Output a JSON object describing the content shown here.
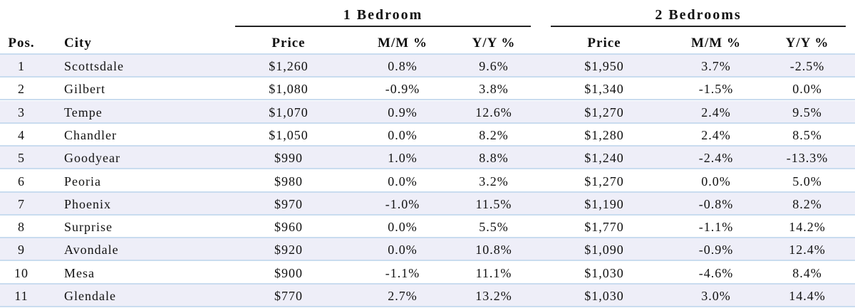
{
  "table": {
    "groups": [
      "1 Bedroom",
      "2 Bedrooms"
    ],
    "columns": [
      "Pos.",
      "City",
      "Price",
      "M/M %",
      "Y/Y %",
      "Price",
      "M/M %",
      "Y/Y %"
    ],
    "rows": [
      [
        "1",
        "Scottsdale",
        "$1,260",
        "0.8%",
        "9.6%",
        "$1,950",
        "3.7%",
        "-2.5%"
      ],
      [
        "2",
        "Gilbert",
        "$1,080",
        "-0.9%",
        "3.8%",
        "$1,340",
        "-1.5%",
        "0.0%"
      ],
      [
        "3",
        "Tempe",
        "$1,070",
        "0.9%",
        "12.6%",
        "$1,270",
        "2.4%",
        "9.5%"
      ],
      [
        "4",
        "Chandler",
        "$1,050",
        "0.0%",
        "8.2%",
        "$1,280",
        "2.4%",
        "8.5%"
      ],
      [
        "5",
        "Goodyear",
        "$990",
        "1.0%",
        "8.8%",
        "$1,240",
        "-2.4%",
        "-13.3%"
      ],
      [
        "6",
        "Peoria",
        "$980",
        "0.0%",
        "3.2%",
        "$1,270",
        "0.0%",
        "5.0%"
      ],
      [
        "7",
        "Phoenix",
        "$970",
        "-1.0%",
        "11.5%",
        "$1,190",
        "-0.8%",
        "8.2%"
      ],
      [
        "8",
        "Surprise",
        "$960",
        "0.0%",
        "5.5%",
        "$1,770",
        "-1.1%",
        "14.2%"
      ],
      [
        "9",
        "Avondale",
        "$920",
        "0.0%",
        "10.8%",
        "$1,090",
        "-0.9%",
        "12.4%"
      ],
      [
        "10",
        "Mesa",
        "$900",
        "-1.1%",
        "11.1%",
        "$1,030",
        "-4.6%",
        "8.4%"
      ],
      [
        "11",
        "Glendale",
        "$770",
        "2.7%",
        "13.2%",
        "$1,030",
        "3.0%",
        "14.4%"
      ]
    ]
  }
}
